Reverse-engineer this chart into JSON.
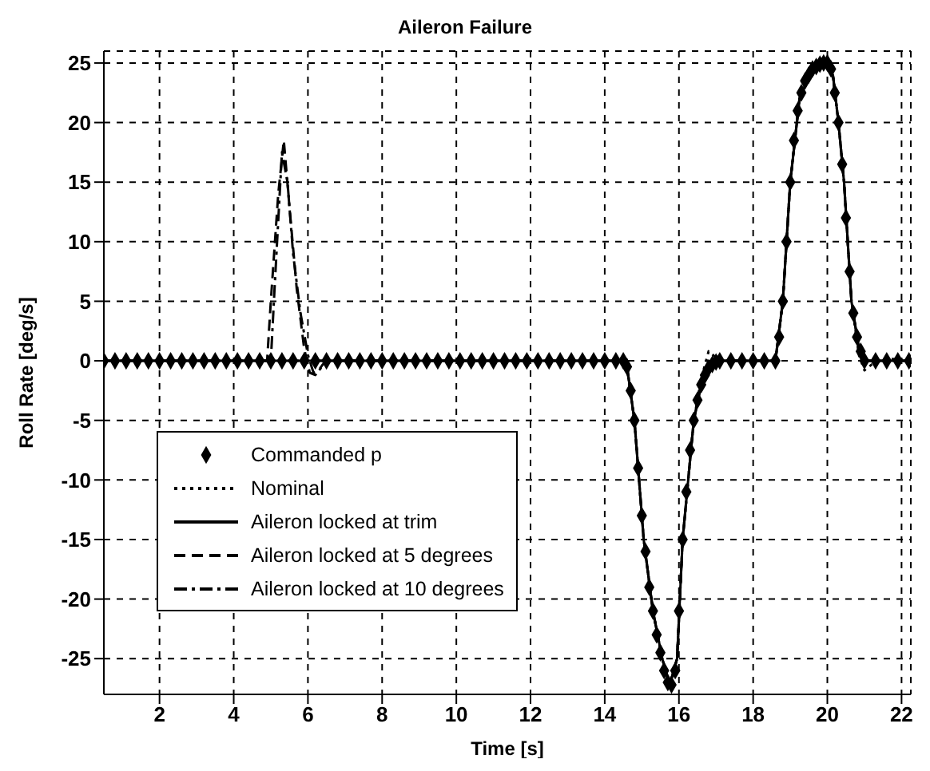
{
  "chart_data": {
    "type": "line",
    "title": "Aileron Failure",
    "xlabel": "Time [s]",
    "ylabel": "Roll Rate [deg/s]",
    "xlim": [
      0.5,
      22.25
    ],
    "ylim": [
      -28,
      26
    ],
    "xticks": [
      2,
      4,
      6,
      8,
      10,
      12,
      14,
      16,
      18,
      20,
      22
    ],
    "yticks": [
      -25,
      -20,
      -15,
      -10,
      -5,
      0,
      5,
      10,
      15,
      20,
      25
    ],
    "grid": true,
    "legend": "bottom left",
    "series": [
      {
        "name": "Commanded p",
        "type": "scatter",
        "marker": "diamond",
        "color": "#000000",
        "x": [
          0.5,
          0.8,
          1.1,
          1.4,
          1.7,
          2.0,
          2.3,
          2.6,
          2.9,
          3.2,
          3.5,
          3.8,
          4.1,
          4.4,
          4.7,
          5.0,
          5.3,
          5.6,
          5.9,
          6.2,
          6.5,
          6.8,
          7.1,
          7.4,
          7.7,
          8.0,
          8.3,
          8.6,
          8.9,
          9.2,
          9.5,
          9.8,
          10.1,
          10.4,
          10.7,
          11.0,
          11.3,
          11.6,
          11.9,
          12.2,
          12.5,
          12.8,
          13.1,
          13.4,
          13.7,
          14.0,
          14.3,
          14.5,
          14.6,
          14.7,
          14.8,
          14.9,
          15.0,
          15.1,
          15.2,
          15.3,
          15.4,
          15.5,
          15.6,
          15.7,
          15.8,
          15.9,
          16.0,
          16.1,
          16.2,
          16.3,
          16.4,
          16.5,
          16.6,
          16.7,
          16.8,
          16.9,
          17.0,
          17.1,
          17.4,
          17.7,
          18.0,
          18.3,
          18.6,
          18.7,
          18.8,
          18.9,
          19.0,
          19.1,
          19.2,
          19.3,
          19.4,
          19.5,
          19.6,
          19.7,
          19.8,
          19.9,
          20.0,
          20.1,
          20.2,
          20.3,
          20.4,
          20.5,
          20.6,
          20.7,
          20.8,
          20.9,
          21.0,
          21.3,
          21.6,
          21.9,
          22.2
        ],
        "values": [
          0,
          0,
          0,
          0,
          0,
          0,
          0,
          0,
          0,
          0,
          0,
          0,
          0,
          0,
          0,
          0,
          0,
          0,
          0,
          0,
          0,
          0,
          0,
          0,
          0,
          0,
          0,
          0,
          0,
          0,
          0,
          0,
          0,
          0,
          0,
          0,
          0,
          0,
          0,
          0,
          0,
          0,
          0,
          0,
          0,
          0,
          0,
          0,
          -0.5,
          -2.5,
          -5,
          -9,
          -13,
          -16,
          -19,
          -21,
          -23,
          -24.5,
          -26,
          -27,
          -27.2,
          -26,
          -21,
          -15,
          -11,
          -7.5,
          -5,
          -3.3,
          -2,
          -1.2,
          -0.6,
          -0.3,
          -0.1,
          0,
          0,
          0,
          0,
          0,
          0,
          2,
          5,
          10,
          15,
          18.5,
          21,
          22.5,
          23.5,
          24,
          24.5,
          24.7,
          24.9,
          25,
          25,
          24.5,
          22.5,
          20,
          16.5,
          12,
          7.5,
          4,
          2,
          0.8,
          0,
          0,
          0,
          0,
          0
        ]
      },
      {
        "name": "Nominal",
        "line_style": "dotted",
        "color": "#000000",
        "x": [
          0.5,
          14.5,
          14.6,
          14.8,
          15.05,
          15.3,
          15.55,
          15.75,
          15.95,
          16.1,
          16.4,
          16.6,
          16.8,
          17.1,
          18.6,
          18.8,
          19.0,
          19.25,
          19.6,
          20.0,
          20.15,
          20.3,
          20.45,
          20.65,
          20.85,
          21.0,
          21.2,
          21.6,
          22.25
        ],
        "values": [
          0,
          0,
          -0.5,
          -5,
          -15,
          -21,
          -25,
          -27.2,
          -25,
          -15,
          -5,
          -1.5,
          0.8,
          0,
          0,
          5,
          15,
          22,
          24.5,
          25,
          24,
          20,
          15,
          5,
          0.5,
          -0.8,
          -0.3,
          0.2,
          0
        ]
      },
      {
        "name": "Aileron locked at trim",
        "line_style": "solid",
        "color": "#000000",
        "x": [
          0.5,
          14.5,
          14.6,
          14.8,
          15.05,
          15.3,
          15.55,
          15.75,
          15.95,
          16.1,
          16.4,
          16.6,
          16.8,
          17.1,
          18.6,
          18.8,
          19.0,
          19.25,
          19.6,
          20.0,
          20.15,
          20.3,
          20.45,
          20.65,
          20.85,
          21.0,
          22.25
        ],
        "values": [
          0,
          0,
          -0.5,
          -5,
          -15,
          -21,
          -25,
          -27.2,
          -25,
          -15,
          -5,
          -2,
          -0.6,
          0,
          0,
          5,
          15,
          22,
          24.5,
          25,
          24,
          20,
          15,
          5,
          1,
          0,
          0
        ]
      },
      {
        "name": "Aileron locked at 5 degrees",
        "line_style": "dashed",
        "color": "#000000",
        "x": [
          0.5,
          4.9,
          5.0,
          5.2,
          5.35,
          5.5,
          5.7,
          5.9,
          6.05,
          6.2,
          6.4,
          6.6,
          14.5,
          14.6,
          14.8,
          15.05,
          15.3,
          15.55,
          15.75,
          15.95,
          16.1,
          16.4,
          16.6,
          16.8,
          17.1,
          18.6,
          18.8,
          19.0,
          19.25,
          19.6,
          20.0,
          20.15,
          20.3,
          20.45,
          20.65,
          20.85,
          21.0,
          22.25
        ],
        "values": [
          0,
          0,
          5,
          14,
          18.5,
          13,
          6,
          1,
          -1,
          -1.2,
          -0.3,
          0,
          0,
          -0.5,
          -5,
          -15,
          -21,
          -25,
          -27.2,
          -25,
          -15,
          -5,
          -2,
          -0.6,
          0,
          0,
          5,
          15,
          22,
          24.5,
          25,
          24,
          20,
          15,
          5,
          1,
          0,
          0
        ]
      },
      {
        "name": "Aileron locked at 10 degrees",
        "line_style": "dashdot",
        "color": "#000000",
        "x": [
          0.5,
          5.0,
          5.1,
          5.3,
          5.45,
          5.6,
          5.8,
          6.0,
          6.15,
          6.3,
          6.5,
          14.5,
          14.6,
          14.8,
          15.05,
          15.3,
          15.55,
          15.75,
          15.95,
          16.1,
          16.4,
          16.6,
          16.8,
          17.1,
          18.6,
          18.8,
          19.0,
          19.25,
          19.6,
          20.0,
          20.15,
          20.3,
          20.45,
          20.65,
          20.85,
          21.0,
          22.25
        ],
        "values": [
          0,
          0,
          6,
          17.5,
          15,
          9,
          4,
          0.5,
          -1,
          -0.8,
          0,
          0,
          -0.5,
          -5,
          -15,
          -21,
          -25,
          -27.2,
          -25,
          -15,
          -5,
          -2,
          -0.6,
          0,
          0,
          5,
          15,
          22,
          24.5,
          25,
          24,
          20,
          15,
          5,
          1,
          0,
          0
        ]
      }
    ]
  }
}
